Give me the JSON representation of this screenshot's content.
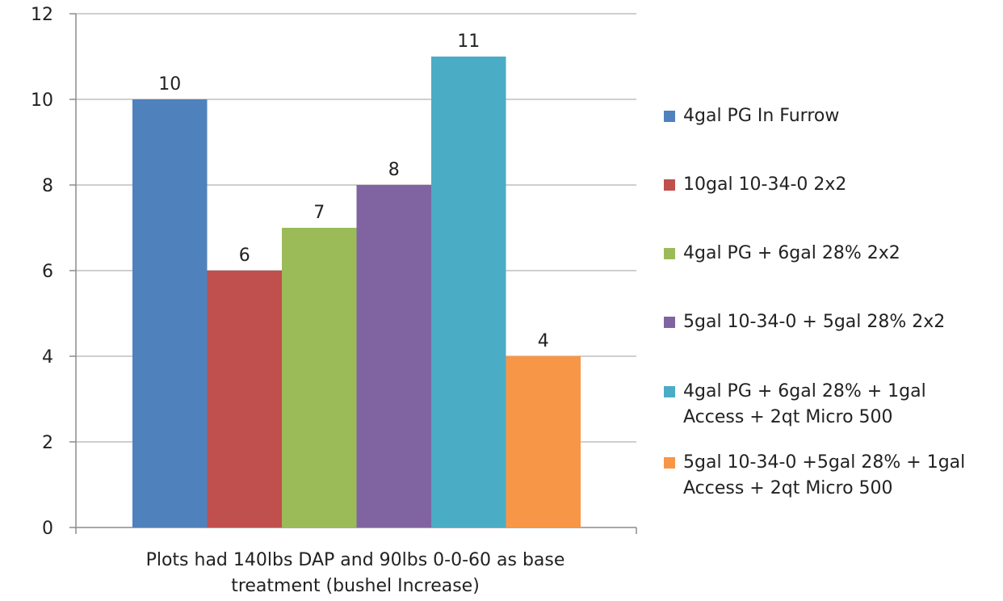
{
  "chart_data": {
    "type": "bar",
    "title": "",
    "xlabel": "Plots had 140lbs DAP and 90lbs 0-0-60 as base treatment (bushel Increase)",
    "ylabel": "",
    "ylim": [
      0,
      12
    ],
    "yticks": [
      0,
      2,
      4,
      6,
      8,
      10,
      12
    ],
    "grid": true,
    "legend_position": "right",
    "categories": [
      "Plots had 140lbs DAP and 90lbs 0-0-60 as base treatment (bushel Increase)"
    ],
    "series": [
      {
        "name": "4gal PG In Furrow",
        "values": [
          10
        ],
        "color": "#4F81BD"
      },
      {
        "name": "10gal 10-34-0 2x2",
        "values": [
          6
        ],
        "color": "#C0504D"
      },
      {
        "name": "4gal PG + 6gal 28% 2x2",
        "values": [
          7
        ],
        "color": "#9BBB59"
      },
      {
        "name": "5gal 10-34-0 + 5gal 28% 2x2",
        "values": [
          8
        ],
        "color": "#8064A2"
      },
      {
        "name": "4gal PG + 6gal 28% + 1gal Access + 2qt Micro 500",
        "values": [
          11
        ],
        "color": "#4BACC6"
      },
      {
        "name": "5gal 10-34-0 +5gal 28% + 1gal Access + 2qt Micro 500",
        "values": [
          4
        ],
        "color": "#F79646"
      }
    ]
  },
  "x_caption_lines": [
    "Plots had 140lbs DAP and 90lbs 0-0-60 as base",
    "treatment (bushel Increase)"
  ],
  "legend": [
    {
      "lines": [
        "4gal PG In Furrow"
      ]
    },
    {
      "lines": [
        "10gal 10-34-0 2x2"
      ]
    },
    {
      "lines": [
        "4gal PG + 6gal 28% 2x2"
      ]
    },
    {
      "lines": [
        "5gal 10-34-0 + 5gal 28% 2x2"
      ]
    },
    {
      "lines": [
        "4gal PG + 6gal 28% + 1gal",
        "Access + 2qt Micro 500"
      ]
    },
    {
      "lines": [
        "5gal 10-34-0 +5gal 28% + 1gal",
        "Access + 2qt Micro 500"
      ]
    }
  ]
}
